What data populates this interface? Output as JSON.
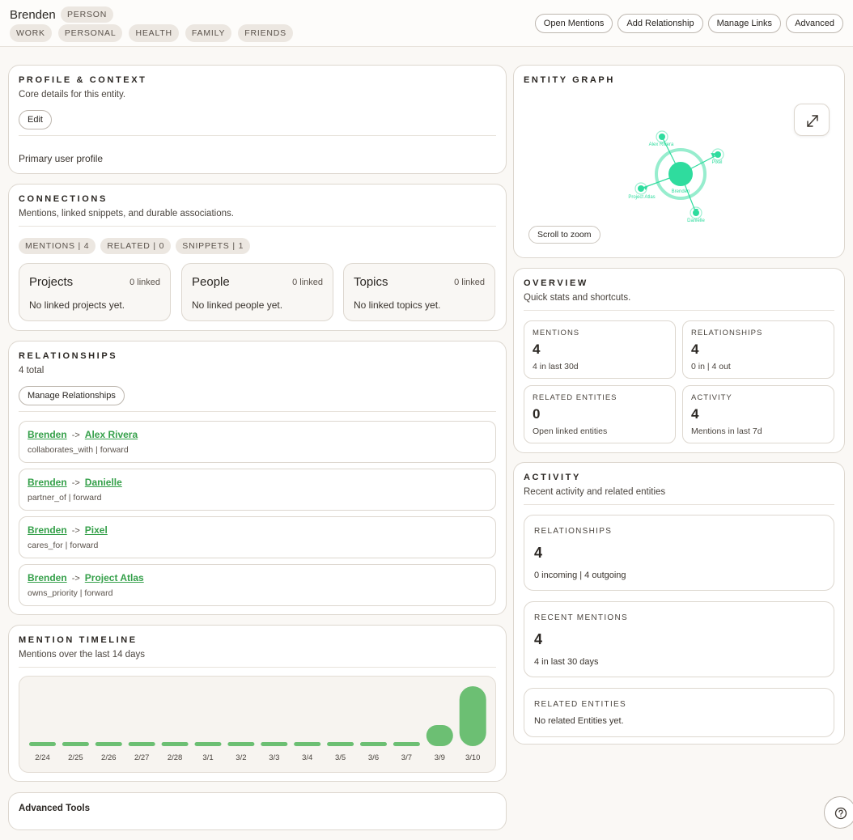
{
  "entity": {
    "name": "Brenden",
    "type": "PERSON",
    "tags": [
      "WORK",
      "PERSONAL",
      "HEALTH",
      "FAMILY",
      "FRIENDS"
    ]
  },
  "actions": {
    "open_mentions": "Open Mentions",
    "add_relationship": "Add Relationship",
    "manage_links": "Manage Links",
    "advanced": "Advanced"
  },
  "profile": {
    "title": "PROFILE & CONTEXT",
    "subtitle": "Core details for this entity.",
    "edit_label": "Edit",
    "text": "Primary user profile"
  },
  "connections": {
    "title": "CONNECTIONS",
    "subtitle": "Mentions, linked snippets, and durable associations.",
    "chips": [
      "MENTIONS | 4",
      "RELATED | 0",
      "SNIPPETS | 1"
    ],
    "groups": [
      {
        "name": "Projects",
        "count": "0 linked",
        "empty": "No linked projects yet."
      },
      {
        "name": "People",
        "count": "0 linked",
        "empty": "No linked people yet."
      },
      {
        "name": "Topics",
        "count": "0 linked",
        "empty": "No linked topics yet."
      }
    ]
  },
  "relationships": {
    "title": "RELATIONSHIPS",
    "subtitle": "4 total",
    "manage_label": "Manage Relationships",
    "items": [
      {
        "from": "Brenden",
        "arrow": "->",
        "to": "Alex Rivera",
        "meta": "collaborates_with | forward"
      },
      {
        "from": "Brenden",
        "arrow": "->",
        "to": "Danielle",
        "meta": "partner_of | forward"
      },
      {
        "from": "Brenden",
        "arrow": "->",
        "to": "Pixel",
        "meta": "cares_for | forward"
      },
      {
        "from": "Brenden",
        "arrow": "->",
        "to": "Project Atlas",
        "meta": "owns_priority | forward"
      }
    ]
  },
  "timeline": {
    "title": "MENTION TIMELINE",
    "subtitle": "Mentions over the last 14 days"
  },
  "chart_data": {
    "type": "bar",
    "title": "",
    "categories": [
      "2/24",
      "2/25",
      "2/26",
      "2/27",
      "2/28",
      "3/1",
      "3/2",
      "3/3",
      "3/4",
      "3/5",
      "3/6",
      "3/7",
      "3/9",
      "3/10"
    ],
    "values": [
      0,
      0,
      0,
      0,
      0,
      0,
      0,
      0,
      0,
      0,
      0,
      0,
      1,
      3
    ],
    "color": "#6cbf73"
  },
  "advanced_tools": {
    "label": "Advanced Tools"
  },
  "graph": {
    "title": "ENTITY GRAPH",
    "zoom_label": "Scroll to zoom",
    "center": "Brenden",
    "nodes": [
      "Alex Rivera",
      "Pixel",
      "Project Atlas",
      "Danielle"
    ],
    "color": "#2fdc9e"
  },
  "overview": {
    "title": "OVERVIEW",
    "subtitle": "Quick stats and shortcuts.",
    "stats": [
      {
        "label": "MENTIONS",
        "value": "4",
        "sub": "4 in last 30d"
      },
      {
        "label": "RELATIONSHIPS",
        "value": "4",
        "sub": "0 in | 4 out"
      },
      {
        "label": "RELATED ENTITIES",
        "value": "0",
        "sub": "Open linked entities"
      },
      {
        "label": "ACTIVITY",
        "value": "4",
        "sub": "Mentions in last 7d"
      }
    ]
  },
  "activity": {
    "title": "ACTIVITY",
    "subtitle": "Recent activity and related entities",
    "relationships": {
      "label": "RELATIONSHIPS",
      "value": "4",
      "sub": "0 incoming | 4 outgoing"
    },
    "mentions": {
      "label": "RECENT MENTIONS",
      "value": "4",
      "sub": "4 in last 30 days"
    },
    "related": {
      "label": "RELATED ENTITIES",
      "sub": "No related Entities yet."
    }
  }
}
